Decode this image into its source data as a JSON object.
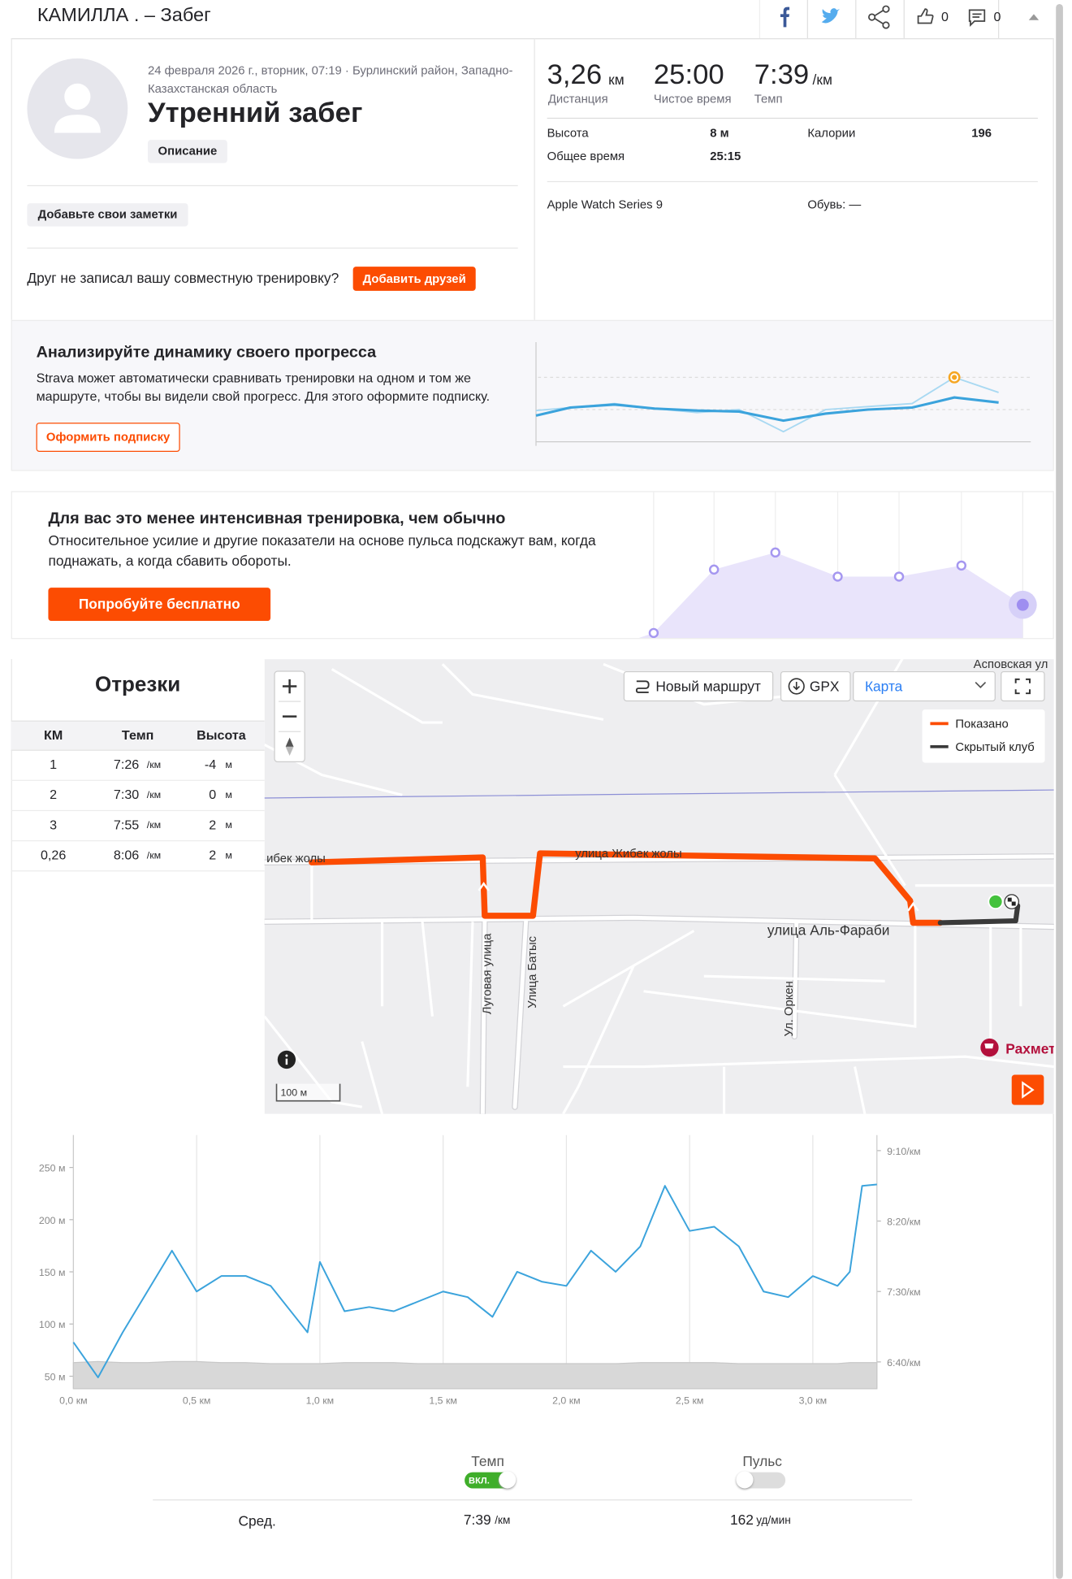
{
  "header": {
    "title": "КАМИЛЛА . – Забег",
    "kudos": "0",
    "comments": "0"
  },
  "activity": {
    "date": "24 февраля 2026 г., вторник, 07:19 · Бурлинский район, Западно-Казахстанская область",
    "name": "Утренний забег",
    "description_button": "Описание",
    "notes_button": "Добавьте свои заметки",
    "friends_text": "Друг не записал вашу совместную тренировку?",
    "friends_button": "Добавить друзей"
  },
  "stats": {
    "distance": {
      "value": "3,26",
      "unit": "км",
      "label": "Дистанция"
    },
    "moving_time": {
      "value": "25:00",
      "label": "Чистое время"
    },
    "pace": {
      "value": "7:39",
      "unit": "/км",
      "label": "Темп"
    },
    "details": [
      {
        "label": "Высота",
        "value": "8 м"
      },
      {
        "label": "Калории",
        "value": "196"
      },
      {
        "label": "Общее время",
        "value": "25:15"
      }
    ],
    "device": "Apple Watch Series 9",
    "shoes": "Обувь: —"
  },
  "promo_progress": {
    "title": "Анализируйте динамику своего прогресса",
    "text": "Strava может автоматически сравнивать тренировки на одном и том же маршруте, чтобы вы видели свой прогресс. Для этого оформите подписку.",
    "button": "Оформить подписку"
  },
  "promo_intensity": {
    "title": "Для вас это менее интенсивная тренировка, чем обычно",
    "text": "Относительное усилие и другие показатели на основе пульса подскажут вам, когда поднажать, а когда сбавить обороты.",
    "button": "Попробуйте бесплатно"
  },
  "splits": {
    "title": "Отрезки",
    "columns": [
      "КМ",
      "Темп",
      "Высота"
    ],
    "rows": [
      {
        "km": "1",
        "pace": "7:26",
        "pace_unit": "/км",
        "elev": "-4",
        "elev_unit": "м"
      },
      {
        "km": "2",
        "pace": "7:30",
        "pace_unit": "/км",
        "elev": "0",
        "elev_unit": "м"
      },
      {
        "km": "3",
        "pace": "7:55",
        "pace_unit": "/км",
        "elev": "2",
        "elev_unit": "м"
      },
      {
        "km": "0,26",
        "pace": "8:06",
        "pace_unit": "/км",
        "elev": "2",
        "elev_unit": "м"
      }
    ]
  },
  "map": {
    "new_route": "Новый маршрут",
    "gpx": "GPX",
    "map_type": "Карта",
    "legend": [
      "Показано",
      "Скрытый клуб"
    ],
    "streets": [
      "ибек жолы",
      "улица Жибек жолы",
      "улица Аль-Фараби",
      "Луговая улица",
      "Улица Батыс",
      "Ул. Оркен",
      "Асповская ул"
    ],
    "poi": "Рахмет",
    "scale": "100 м"
  },
  "chart_data": {
    "type": "line",
    "x": [
      0,
      0.1,
      0.2,
      0.3,
      0.4,
      0.5,
      0.6,
      0.7,
      0.8,
      0.9,
      0.95,
      1.0,
      1.1,
      1.2,
      1.3,
      1.4,
      1.5,
      1.6,
      1.7,
      1.8,
      1.9,
      2.0,
      2.1,
      2.2,
      2.3,
      2.4,
      2.5,
      2.6,
      2.7,
      2.8,
      2.9,
      3.0,
      3.1,
      3.15,
      3.2,
      3.26
    ],
    "series": [
      {
        "color": "#d8d8d8",
        "values": [
          63,
          64,
          63,
          63,
          64,
          64,
          63,
          63,
          62,
          62,
          62,
          62,
          63,
          63,
          63,
          62,
          62,
          62,
          62,
          62,
          62,
          62,
          62,
          62,
          63,
          63,
          63,
          63,
          62,
          62,
          62,
          62,
          62,
          63,
          63,
          63
        ]
      },
      {
        "name": "Темп",
        "color": "#3ba3dc",
        "axis": "y2",
        "values": [
          414,
          389,
          421,
          450,
          479,
          450,
          461,
          461,
          454,
          432,
          421,
          471,
          436,
          439,
          436,
          443,
          450,
          446,
          432,
          464,
          457,
          454,
          479,
          464,
          482,
          525,
          493,
          496,
          482,
          450,
          446,
          461,
          454,
          464,
          525,
          526
        ]
      }
    ],
    "xlim": [
      0,
      3.26
    ],
    "xticks": [
      {
        "value": 0,
        "label": "0,0 км"
      },
      {
        "value": 0.5,
        "label": "0,5 км"
      },
      {
        "value": 1,
        "label": "1,0 км"
      },
      {
        "value": 1.5,
        "label": "1,5 км"
      },
      {
        "value": 2,
        "label": "2,0 км"
      },
      {
        "value": 2.5,
        "label": "2,5 км"
      },
      {
        "value": 3,
        "label": "3,0 км"
      }
    ],
    "ylim": [
      38,
      281
    ],
    "yticks": [
      {
        "value": 50,
        "label": "50 м"
      },
      {
        "value": 100,
        "label": "100 м"
      },
      {
        "value": 150,
        "label": "150 м"
      },
      {
        "value": 200,
        "label": "200 м"
      },
      {
        "value": 250,
        "label": "250 м"
      }
    ],
    "y2lim": [
      381,
      561
    ],
    "y2ticks": [
      {
        "value": 400,
        "label": "6:40/км"
      },
      {
        "value": 450,
        "label": "7:30/км"
      },
      {
        "value": 500,
        "label": "8:20/км"
      },
      {
        "value": 550,
        "label": "9:10/км"
      }
    ],
    "grid": true
  },
  "footer": {
    "pace_toggle_state": "ВКЛ.",
    "hr_label": "Пульс",
    "avg_label": "Сред.",
    "pace_avg": "7:39",
    "pace_unit": "/км",
    "hr_avg": "162",
    "hr_unit": "уд/мин"
  }
}
